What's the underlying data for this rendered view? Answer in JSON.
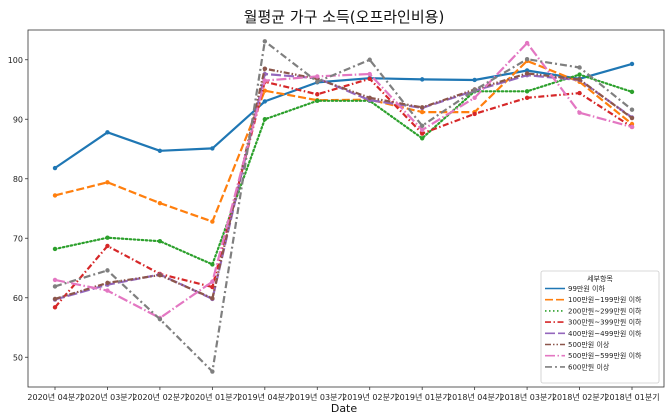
{
  "chart_data": {
    "type": "line",
    "title": "월평균 가구 소득(오프라인비용)",
    "xlabel": "Date",
    "ylabel": "",
    "categories": [
      "2020년 04분기",
      "2020년 03분기",
      "2020년 02분기",
      "2020년 01분기",
      "2019년 04분기",
      "2019년 03분기",
      "2019년 02분기",
      "2019년 01분기",
      "2018년 04분기",
      "2018년 03분기",
      "2018년 02분기",
      "2018년 01분기"
    ],
    "ylim": [
      45,
      105
    ],
    "yticks": [
      50,
      60,
      70,
      80,
      90,
      100
    ],
    "grid": false,
    "legend": {
      "title": "세부항목",
      "position": "lower-right"
    },
    "series": [
      {
        "name": "99만원 이하",
        "color": "#1f77b4",
        "dash": "solid",
        "values": [
          81.8,
          87.8,
          84.7,
          85.1,
          93.0,
          96.2,
          96.9,
          96.7,
          96.6,
          98.2,
          96.8,
          99.3
        ]
      },
      {
        "name": "100만원~199만원 이하",
        "color": "#ff7f0e",
        "dash": "dashed",
        "values": [
          77.2,
          79.4,
          75.9,
          72.8,
          94.8,
          93.2,
          93.3,
          91.2,
          91.2,
          99.8,
          96.3,
          89.2
        ]
      },
      {
        "name": "200만원~299만원 이하",
        "color": "#2ca02c",
        "dash": "dotted",
        "values": [
          68.2,
          70.1,
          69.5,
          65.6,
          90.0,
          93.1,
          93.1,
          86.8,
          94.7,
          94.7,
          97.5,
          94.6
        ]
      },
      {
        "name": "300만원~399만원 이하",
        "color": "#d62728",
        "dash": "dashdot",
        "values": [
          58.4,
          68.7,
          64.0,
          61.8,
          96.3,
          94.2,
          96.8,
          87.6,
          90.9,
          93.6,
          94.4,
          88.7
        ]
      },
      {
        "name": "400만원~499만원 이하",
        "color": "#9467bd",
        "dash": "longdash",
        "values": [
          59.7,
          62.2,
          63.9,
          59.8,
          97.6,
          96.9,
          93.2,
          91.9,
          94.8,
          97.4,
          96.6,
          90.3
        ]
      },
      {
        "name": "500만원 이상",
        "color": "#8c564b",
        "dash": "dashdotdot",
        "values": [
          59.8,
          62.5,
          63.8,
          59.9,
          98.5,
          96.8,
          93.6,
          92.0,
          95.0,
          97.7,
          96.7,
          90.2
        ]
      },
      {
        "name": "500만원~599만원 이하",
        "color": "#e377c2",
        "dash": "longdashdot",
        "values": [
          63.0,
          61.2,
          56.6,
          62.7,
          96.5,
          97.2,
          97.6,
          88.2,
          93.6,
          102.8,
          91.1,
          88.7
        ]
      },
      {
        "name": "600만원 이상",
        "color": "#7f7f7f",
        "dash": "loosedashdot",
        "values": [
          61.9,
          64.6,
          56.4,
          47.6,
          103.1,
          96.3,
          100.0,
          88.9,
          94.9,
          100.1,
          98.7,
          91.6
        ]
      }
    ]
  }
}
